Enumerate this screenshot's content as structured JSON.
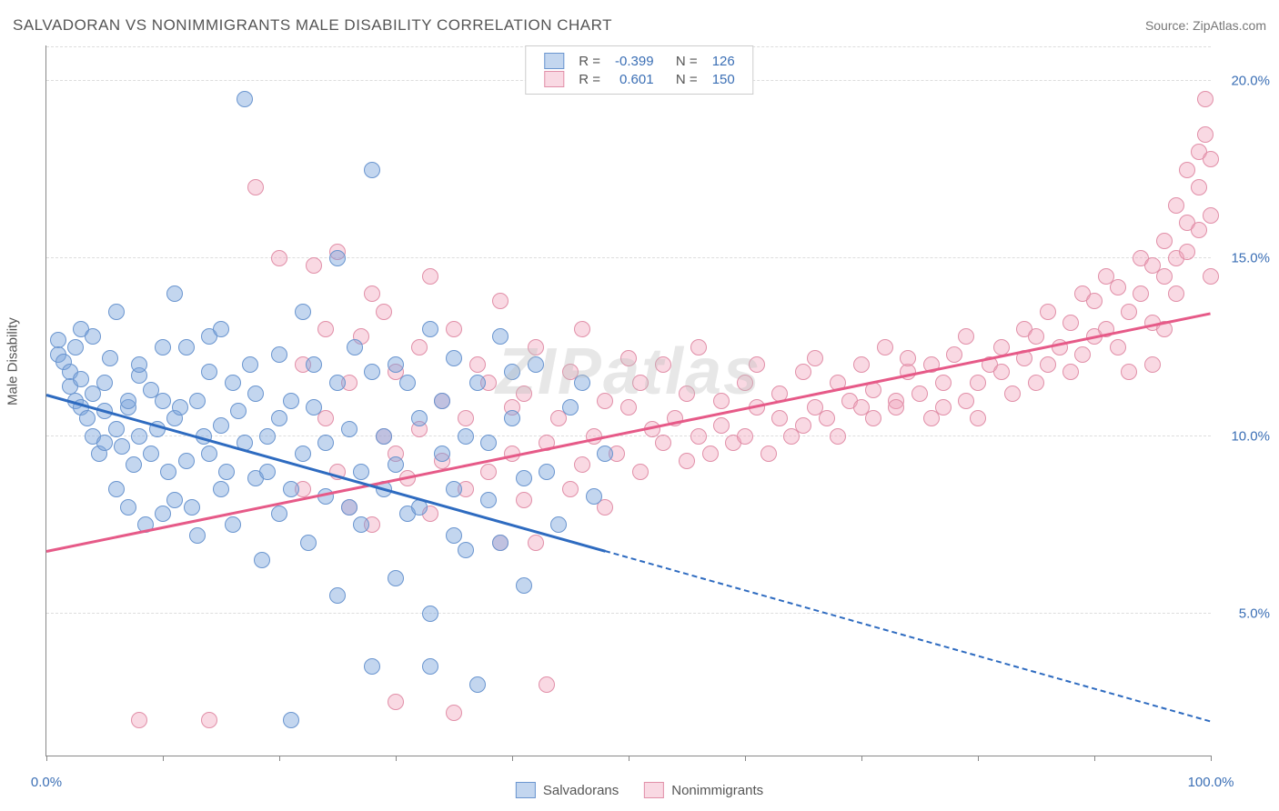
{
  "title": "SALVADORAN VS NONIMMIGRANTS MALE DISABILITY CORRELATION CHART",
  "source": "Source: ZipAtlas.com",
  "watermark": "ZIPatlas",
  "ylabel": "Male Disability",
  "xlim": [
    0,
    100
  ],
  "ylim": [
    1,
    21
  ],
  "yticks": [
    5.0,
    10.0,
    15.0,
    20.0
  ],
  "ytick_labels": [
    "5.0%",
    "10.0%",
    "15.0%",
    "20.0%"
  ],
  "xticks": [
    0,
    10,
    20,
    30,
    40,
    50,
    60,
    70,
    80,
    90,
    100
  ],
  "xtick_labels": {
    "0": "0.0%",
    "100": "100.0%"
  },
  "grid_color": "#e0e0e0",
  "axis_color": "#888888",
  "series": {
    "salvadorans": {
      "label": "Salvadorans",
      "fill": "rgba(122,163,220,0.45)",
      "stroke": "#6a95cf",
      "line_color": "#2e6bc0",
      "r_value": "-0.399",
      "n_value": "126",
      "trend": {
        "x1": 0,
        "y1": 11.2,
        "x2": 48,
        "y2": 6.8,
        "dashed_to_x": 100,
        "dashed_to_y": 2.0
      },
      "marker_r": 9,
      "points": [
        [
          1,
          12.7
        ],
        [
          1,
          12.3
        ],
        [
          1.5,
          12.1
        ],
        [
          2,
          11.8
        ],
        [
          2,
          11.4
        ],
        [
          2.5,
          12.5
        ],
        [
          2.5,
          11.0
        ],
        [
          3,
          11.6
        ],
        [
          3,
          10.8
        ],
        [
          3,
          13.0
        ],
        [
          3.5,
          10.5
        ],
        [
          4,
          11.2
        ],
        [
          4,
          10.0
        ],
        [
          4,
          12.8
        ],
        [
          4.5,
          9.5
        ],
        [
          5,
          10.7
        ],
        [
          5,
          11.5
        ],
        [
          5,
          9.8
        ],
        [
          5.5,
          12.2
        ],
        [
          6,
          10.2
        ],
        [
          6,
          8.5
        ],
        [
          6,
          13.5
        ],
        [
          6.5,
          9.7
        ],
        [
          7,
          10.8
        ],
        [
          7,
          11.0
        ],
        [
          7,
          8.0
        ],
        [
          7.5,
          9.2
        ],
        [
          8,
          11.7
        ],
        [
          8,
          12.0
        ],
        [
          8,
          10.0
        ],
        [
          8.5,
          7.5
        ],
        [
          9,
          9.5
        ],
        [
          9,
          11.3
        ],
        [
          9.5,
          10.2
        ],
        [
          10,
          7.8
        ],
        [
          10,
          12.5
        ],
        [
          10,
          11.0
        ],
        [
          10.5,
          9.0
        ],
        [
          11,
          10.5
        ],
        [
          11,
          8.2
        ],
        [
          11,
          14.0
        ],
        [
          11.5,
          10.8
        ],
        [
          12,
          12.5
        ],
        [
          12,
          9.3
        ],
        [
          12.5,
          8.0
        ],
        [
          13,
          11.0
        ],
        [
          13,
          7.2
        ],
        [
          13.5,
          10.0
        ],
        [
          14,
          9.5
        ],
        [
          14,
          11.8
        ],
        [
          14,
          12.8
        ],
        [
          15,
          10.3
        ],
        [
          15,
          8.5
        ],
        [
          15,
          13.0
        ],
        [
          15.5,
          9.0
        ],
        [
          16,
          11.5
        ],
        [
          16,
          7.5
        ],
        [
          16.5,
          10.7
        ],
        [
          17,
          19.5
        ],
        [
          17,
          9.8
        ],
        [
          17.5,
          12.0
        ],
        [
          18,
          8.8
        ],
        [
          18,
          11.2
        ],
        [
          18.5,
          6.5
        ],
        [
          19,
          10.0
        ],
        [
          19,
          9.0
        ],
        [
          20,
          12.3
        ],
        [
          20,
          7.8
        ],
        [
          20,
          10.5
        ],
        [
          21,
          8.5
        ],
        [
          21,
          11.0
        ],
        [
          21,
          2.0
        ],
        [
          22,
          9.5
        ],
        [
          22,
          13.5
        ],
        [
          22.5,
          7.0
        ],
        [
          23,
          10.8
        ],
        [
          23,
          12.0
        ],
        [
          24,
          8.3
        ],
        [
          24,
          9.8
        ],
        [
          25,
          11.5
        ],
        [
          25,
          5.5
        ],
        [
          25,
          15.0
        ],
        [
          26,
          8.0
        ],
        [
          26,
          10.2
        ],
        [
          26.5,
          12.5
        ],
        [
          27,
          7.5
        ],
        [
          27,
          9.0
        ],
        [
          28,
          11.8
        ],
        [
          28,
          3.5
        ],
        [
          28,
          17.5
        ],
        [
          29,
          8.5
        ],
        [
          29,
          10.0
        ],
        [
          30,
          12.0
        ],
        [
          30,
          6.0
        ],
        [
          30,
          9.2
        ],
        [
          31,
          7.8
        ],
        [
          31,
          11.5
        ],
        [
          32,
          8.0
        ],
        [
          32,
          10.5
        ],
        [
          33,
          13.0
        ],
        [
          33,
          5.0
        ],
        [
          33,
          3.5
        ],
        [
          34,
          9.5
        ],
        [
          34,
          11.0
        ],
        [
          35,
          7.2
        ],
        [
          35,
          12.2
        ],
        [
          35,
          8.5
        ],
        [
          36,
          10.0
        ],
        [
          36,
          6.8
        ],
        [
          37,
          3.0
        ],
        [
          37,
          11.5
        ],
        [
          38,
          8.2
        ],
        [
          38,
          9.8
        ],
        [
          39,
          12.8
        ],
        [
          39,
          7.0
        ],
        [
          40,
          10.5
        ],
        [
          40,
          11.8
        ],
        [
          41,
          8.8
        ],
        [
          41,
          5.8
        ],
        [
          42,
          12.0
        ],
        [
          43,
          9.0
        ],
        [
          44,
          7.5
        ],
        [
          45,
          10.8
        ],
        [
          46,
          11.5
        ],
        [
          47,
          8.3
        ],
        [
          48,
          9.5
        ]
      ]
    },
    "nonimmigrants": {
      "label": "Nonimmigrants",
      "fill": "rgba(240,160,185,0.40)",
      "stroke": "#e18fa8",
      "line_color": "#e65a88",
      "r_value": "0.601",
      "n_value": "150",
      "trend": {
        "x1": 0,
        "y1": 6.8,
        "x2": 100,
        "y2": 13.5
      },
      "marker_r": 9,
      "points": [
        [
          8,
          2.0
        ],
        [
          14,
          2.0
        ],
        [
          18,
          17.0
        ],
        [
          20,
          15.0
        ],
        [
          22,
          12.0
        ],
        [
          22,
          8.5
        ],
        [
          23,
          14.8
        ],
        [
          24,
          10.5
        ],
        [
          24,
          13.0
        ],
        [
          25,
          9.0
        ],
        [
          25,
          15.2
        ],
        [
          26,
          11.5
        ],
        [
          26,
          8.0
        ],
        [
          27,
          12.8
        ],
        [
          28,
          14.0
        ],
        [
          28,
          7.5
        ],
        [
          29,
          10.0
        ],
        [
          29,
          13.5
        ],
        [
          30,
          2.5
        ],
        [
          30,
          9.5
        ],
        [
          30,
          11.8
        ],
        [
          31,
          8.8
        ],
        [
          32,
          12.5
        ],
        [
          32,
          10.2
        ],
        [
          33,
          14.5
        ],
        [
          33,
          7.8
        ],
        [
          34,
          11.0
        ],
        [
          34,
          9.3
        ],
        [
          35,
          13.0
        ],
        [
          35,
          2.2
        ],
        [
          36,
          10.5
        ],
        [
          36,
          8.5
        ],
        [
          37,
          12.0
        ],
        [
          38,
          9.0
        ],
        [
          38,
          11.5
        ],
        [
          39,
          13.8
        ],
        [
          39,
          7.0
        ],
        [
          40,
          10.8
        ],
        [
          40,
          9.5
        ],
        [
          41,
          8.2
        ],
        [
          41,
          11.2
        ],
        [
          42,
          12.5
        ],
        [
          42,
          7.0
        ],
        [
          43,
          9.8
        ],
        [
          43,
          3.0
        ],
        [
          44,
          10.5
        ],
        [
          45,
          11.8
        ],
        [
          45,
          8.5
        ],
        [
          46,
          9.2
        ],
        [
          46,
          13.0
        ],
        [
          47,
          10.0
        ],
        [
          48,
          11.0
        ],
        [
          48,
          8.0
        ],
        [
          49,
          9.5
        ],
        [
          50,
          10.8
        ],
        [
          50,
          12.2
        ],
        [
          51,
          9.0
        ],
        [
          51,
          11.5
        ],
        [
          52,
          10.2
        ],
        [
          53,
          9.8
        ],
        [
          53,
          12.0
        ],
        [
          54,
          10.5
        ],
        [
          55,
          11.2
        ],
        [
          55,
          9.3
        ],
        [
          56,
          10.0
        ],
        [
          56,
          12.5
        ],
        [
          57,
          9.5
        ],
        [
          58,
          11.0
        ],
        [
          58,
          10.3
        ],
        [
          59,
          9.8
        ],
        [
          60,
          11.5
        ],
        [
          60,
          10.0
        ],
        [
          61,
          10.8
        ],
        [
          61,
          12.0
        ],
        [
          62,
          9.5
        ],
        [
          63,
          11.2
        ],
        [
          63,
          10.5
        ],
        [
          64,
          10.0
        ],
        [
          65,
          11.8
        ],
        [
          65,
          10.3
        ],
        [
          66,
          10.8
        ],
        [
          66,
          12.2
        ],
        [
          67,
          10.5
        ],
        [
          68,
          11.5
        ],
        [
          68,
          10.0
        ],
        [
          69,
          11.0
        ],
        [
          70,
          12.0
        ],
        [
          70,
          10.8
        ],
        [
          71,
          11.3
        ],
        [
          71,
          10.5
        ],
        [
          72,
          12.5
        ],
        [
          73,
          11.0
        ],
        [
          73,
          10.8
        ],
        [
          74,
          11.8
        ],
        [
          74,
          12.2
        ],
        [
          75,
          11.2
        ],
        [
          76,
          10.5
        ],
        [
          76,
          12.0
        ],
        [
          77,
          11.5
        ],
        [
          77,
          10.8
        ],
        [
          78,
          12.3
        ],
        [
          79,
          11.0
        ],
        [
          79,
          12.8
        ],
        [
          80,
          11.5
        ],
        [
          80,
          10.5
        ],
        [
          81,
          12.0
        ],
        [
          82,
          11.8
        ],
        [
          82,
          12.5
        ],
        [
          83,
          11.2
        ],
        [
          84,
          12.2
        ],
        [
          84,
          13.0
        ],
        [
          85,
          11.5
        ],
        [
          85,
          12.8
        ],
        [
          86,
          12.0
        ],
        [
          86,
          13.5
        ],
        [
          87,
          12.5
        ],
        [
          88,
          11.8
        ],
        [
          88,
          13.2
        ],
        [
          89,
          12.3
        ],
        [
          89,
          14.0
        ],
        [
          90,
          12.8
        ],
        [
          90,
          13.8
        ],
        [
          91,
          13.0
        ],
        [
          91,
          14.5
        ],
        [
          92,
          12.5
        ],
        [
          92,
          14.2
        ],
        [
          93,
          13.5
        ],
        [
          93,
          11.8
        ],
        [
          94,
          14.0
        ],
        [
          94,
          15.0
        ],
        [
          95,
          13.2
        ],
        [
          95,
          14.8
        ],
        [
          95,
          12.0
        ],
        [
          96,
          14.5
        ],
        [
          96,
          15.5
        ],
        [
          96,
          13.0
        ],
        [
          97,
          15.0
        ],
        [
          97,
          16.5
        ],
        [
          97,
          14.0
        ],
        [
          98,
          16.0
        ],
        [
          98,
          17.5
        ],
        [
          98,
          15.2
        ],
        [
          99,
          17.0
        ],
        [
          99,
          18.0
        ],
        [
          99,
          15.8
        ],
        [
          99.5,
          19.5
        ],
        [
          99.5,
          18.5
        ],
        [
          100,
          17.8
        ],
        [
          100,
          16.2
        ],
        [
          100,
          14.5
        ]
      ]
    }
  }
}
